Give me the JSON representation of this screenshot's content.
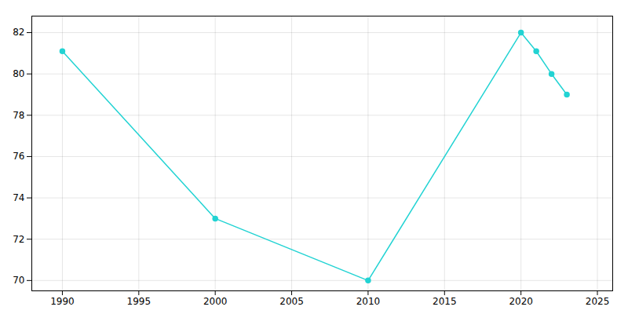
{
  "chart_data": {
    "type": "line",
    "x": [
      1990,
      2000,
      2010,
      2020,
      2021,
      2022,
      2023
    ],
    "values": [
      81.1,
      73.0,
      70.0,
      82.0,
      81.1,
      80.0,
      79.0
    ],
    "color": "#22d3d3",
    "marker": "circle",
    "xlim": [
      1988,
      2026
    ],
    "ylim": [
      69.5,
      82.8
    ],
    "xticks": [
      1990,
      1995,
      2000,
      2005,
      2010,
      2015,
      2020,
      2025
    ],
    "yticks": [
      70,
      72,
      74,
      76,
      78,
      80,
      82
    ],
    "grid": true
  }
}
